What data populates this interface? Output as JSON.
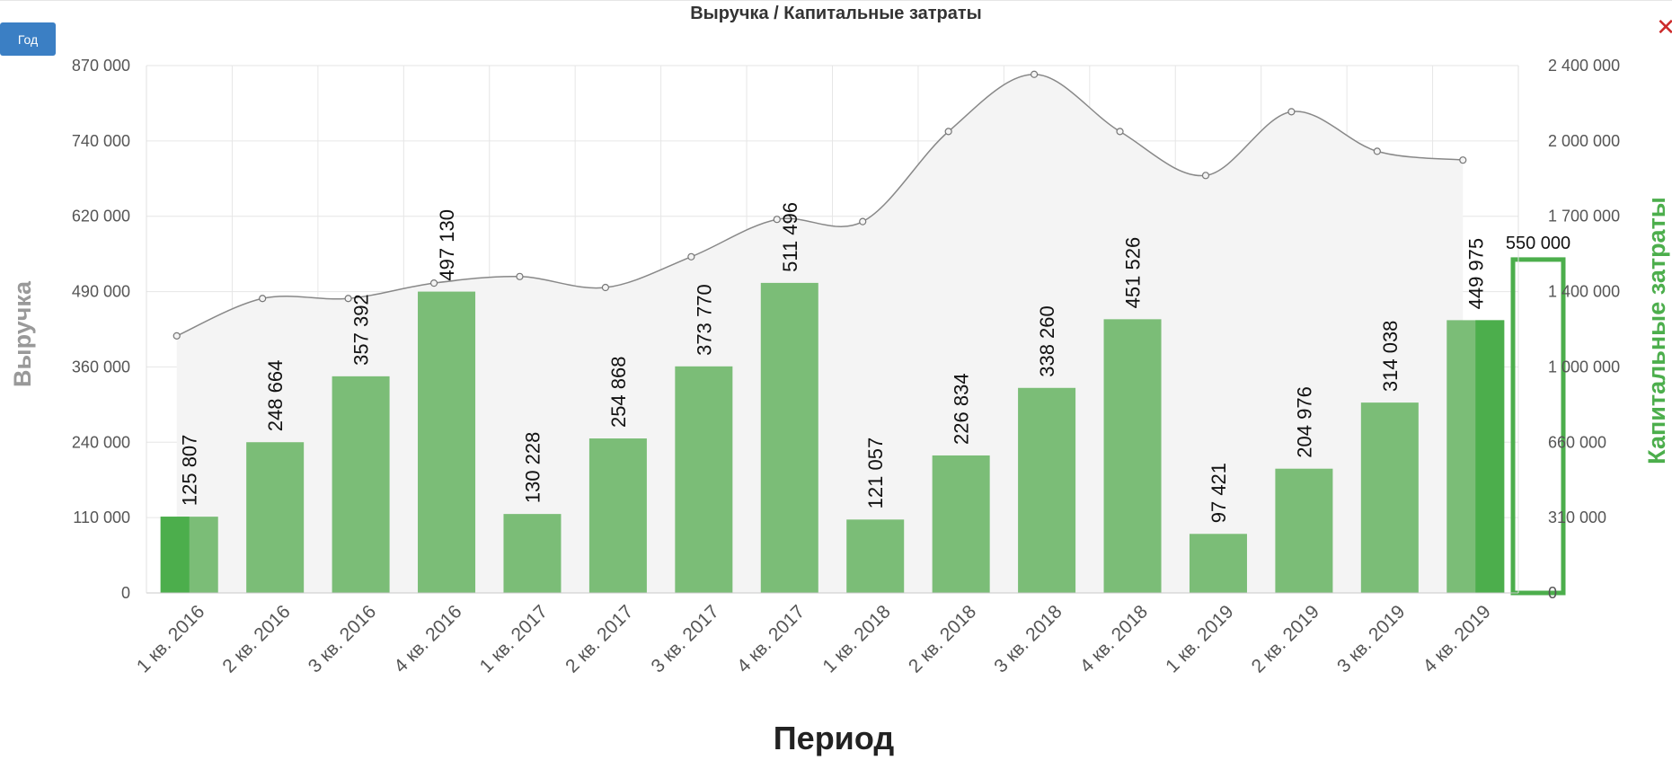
{
  "toolbar": {
    "period_button_label": "Год",
    "close_icon": "close-icon"
  },
  "chart_data": {
    "type": "bar",
    "title": "Выручка / Капитальные затраты",
    "xlabel": "Период",
    "ylabel": "Выручка",
    "ylabel_right": "Капитальные затраты",
    "categories": [
      "1 кв. 2016",
      "2 кв. 2016",
      "3 кв. 2016",
      "4 кв. 2016",
      "1 кв. 2017",
      "2 кв. 2017",
      "3 кв. 2017",
      "4 кв. 2017",
      "1 кв. 2018",
      "2 кв. 2018",
      "3 кв. 2018",
      "4 кв. 2018",
      "1 кв. 2019",
      "2 кв. 2019",
      "3 кв. 2019",
      "4 кв. 2019"
    ],
    "y_ticks_left": [
      "0",
      "110 000",
      "240 000",
      "360 000",
      "490 000",
      "620 000",
      "740 000",
      "870 000"
    ],
    "y_ticks_right": [
      "0",
      "310 000",
      "660 000",
      "1 000 000",
      "1 400 000",
      "1 700 000",
      "2 000 000",
      "2 400 000"
    ],
    "ylim_left": [
      0,
      870000
    ],
    "ylim_right": [
      0,
      2400000
    ],
    "grid": true,
    "series": [
      {
        "type": "bar",
        "axis": "left",
        "color": "#7bbd77",
        "values": [
          125807,
          248664,
          357392,
          497130,
          130228,
          254868,
          373770,
          511496,
          121057,
          226834,
          338260,
          451526,
          97421,
          204976,
          314038,
          449975
        ],
        "labels": [
          "125 807",
          "248 664",
          "357 392",
          "497 130",
          "130 228",
          "254 868",
          "373 770",
          "511 496",
          "121 057",
          "226 834",
          "338 260",
          "451 526",
          "97 421",
          "204 976",
          "314 038",
          "449 975"
        ]
      },
      {
        "type": "area",
        "axis": "right",
        "line_color": "#888888",
        "fill_color": "#f4f4f4",
        "values": [
          1170000,
          1340000,
          1340000,
          1410000,
          1440000,
          1390000,
          1530000,
          1700000,
          1690000,
          2100000,
          2360000,
          2100000,
          1900000,
          2190000,
          2010000,
          1970000
        ]
      }
    ],
    "highlight": {
      "color": "#4cae4c",
      "left_value_label": "550 000",
      "left_value": 550000
    }
  }
}
